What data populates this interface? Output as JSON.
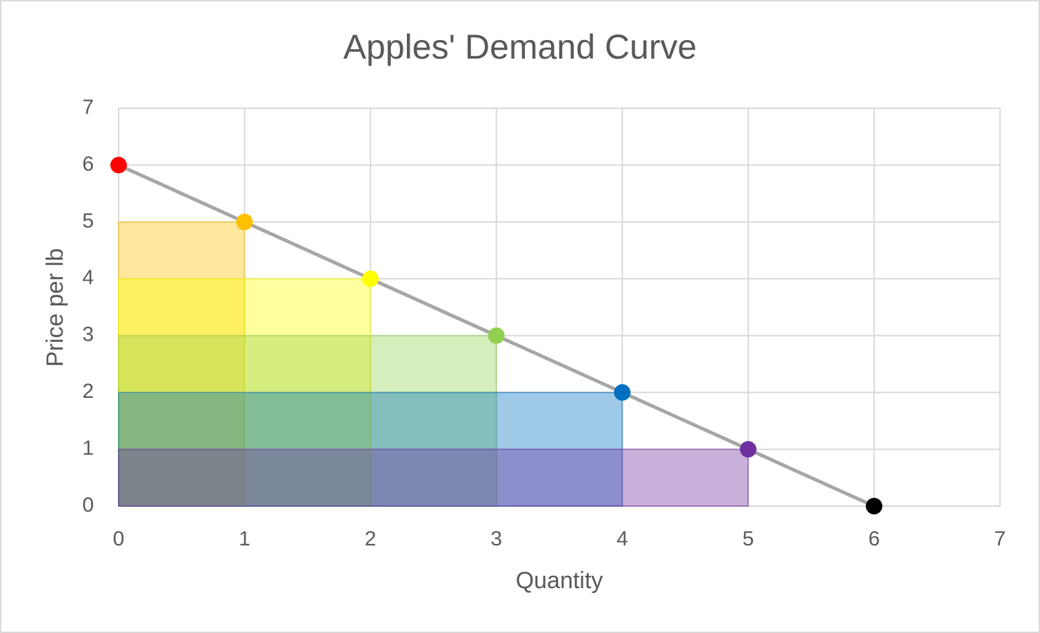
{
  "chart_data": {
    "type": "line",
    "title": "Apples' Demand Curve",
    "x_label": "Quantity",
    "y_label": "Price per lb",
    "x": [
      0,
      1,
      2,
      3,
      4,
      5,
      6
    ],
    "values": [
      6,
      5,
      4,
      3,
      2,
      1,
      0
    ],
    "point_colors": [
      "#ff0000",
      "#ffc000",
      "#ffff00",
      "#92d050",
      "#0070c0",
      "#7030a0",
      "#000000"
    ],
    "line_color": "#a6a6a6",
    "revenue_rectangles": true,
    "xlim": [
      0,
      7
    ],
    "ylim": [
      0,
      7
    ],
    "xticks": [
      0,
      1,
      2,
      3,
      4,
      5,
      6,
      7
    ],
    "yticks": [
      0,
      1,
      2,
      3,
      4,
      5,
      6,
      7
    ],
    "grid": true
  }
}
